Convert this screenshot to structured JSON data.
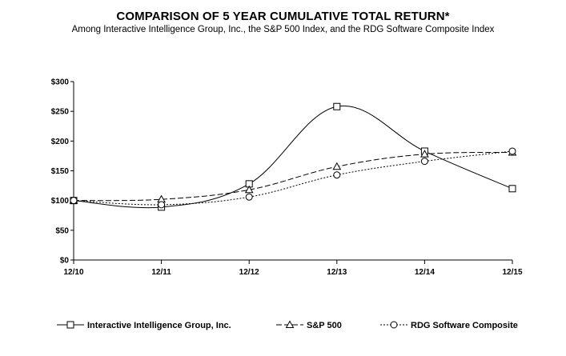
{
  "chart_data": {
    "type": "line",
    "title": "COMPARISON OF 5 YEAR CUMULATIVE TOTAL RETURN*",
    "subtitle": "Among Interactive Intelligence Group, Inc., the S&P 500 Index, and the RDG Software Composite Index",
    "categories": [
      "12/10",
      "12/11",
      "12/12",
      "12/13",
      "12/14",
      "12/15"
    ],
    "ylim": [
      0,
      300
    ],
    "yticks": [
      0,
      50,
      100,
      150,
      200,
      250,
      300
    ],
    "ytick_labels": [
      "$0",
      "$50",
      "$100",
      "$150",
      "$200",
      "$250",
      "$300"
    ],
    "xlabel": "",
    "ylabel": "",
    "legend_position": "bottom",
    "series": [
      {
        "name": "Interactive Intelligence Group, Inc.",
        "marker": "square",
        "dash": "solid",
        "values": [
          100,
          89,
          128,
          258,
          183,
          120
        ]
      },
      {
        "name": "S&P 500",
        "marker": "triangle",
        "dash": "dashed",
        "values": [
          100,
          102,
          118,
          157,
          178,
          181
        ]
      },
      {
        "name": "RDG Software Composite",
        "marker": "circle",
        "dash": "dotted",
        "values": [
          100,
          93,
          106,
          143,
          166,
          183
        ]
      }
    ]
  }
}
